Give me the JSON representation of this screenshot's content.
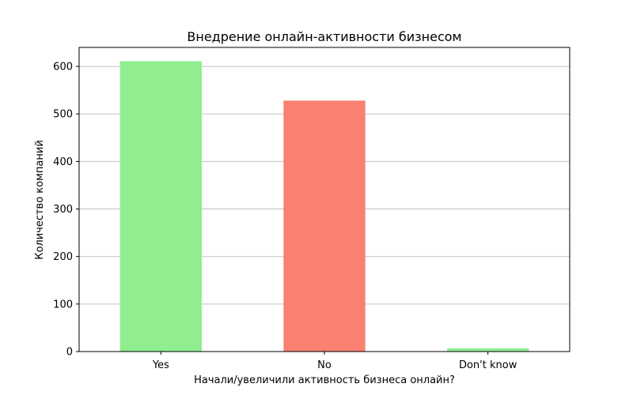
{
  "chart_data": {
    "type": "bar",
    "title": "Внедрение онлайн-активности бизнесом",
    "xlabel": "Начали/увеличили активность бизнеса онлайн?",
    "ylabel": "Количество компаний",
    "categories": [
      "Yes",
      "No",
      "Don't know"
    ],
    "values": [
      611,
      528,
      7
    ],
    "colors": [
      "#90ee90",
      "#fa8072",
      "#90ee90"
    ],
    "ylim": [
      0,
      640
    ],
    "yticks": [
      0,
      100,
      200,
      300,
      400,
      500,
      600
    ],
    "grid": "horizontal"
  }
}
